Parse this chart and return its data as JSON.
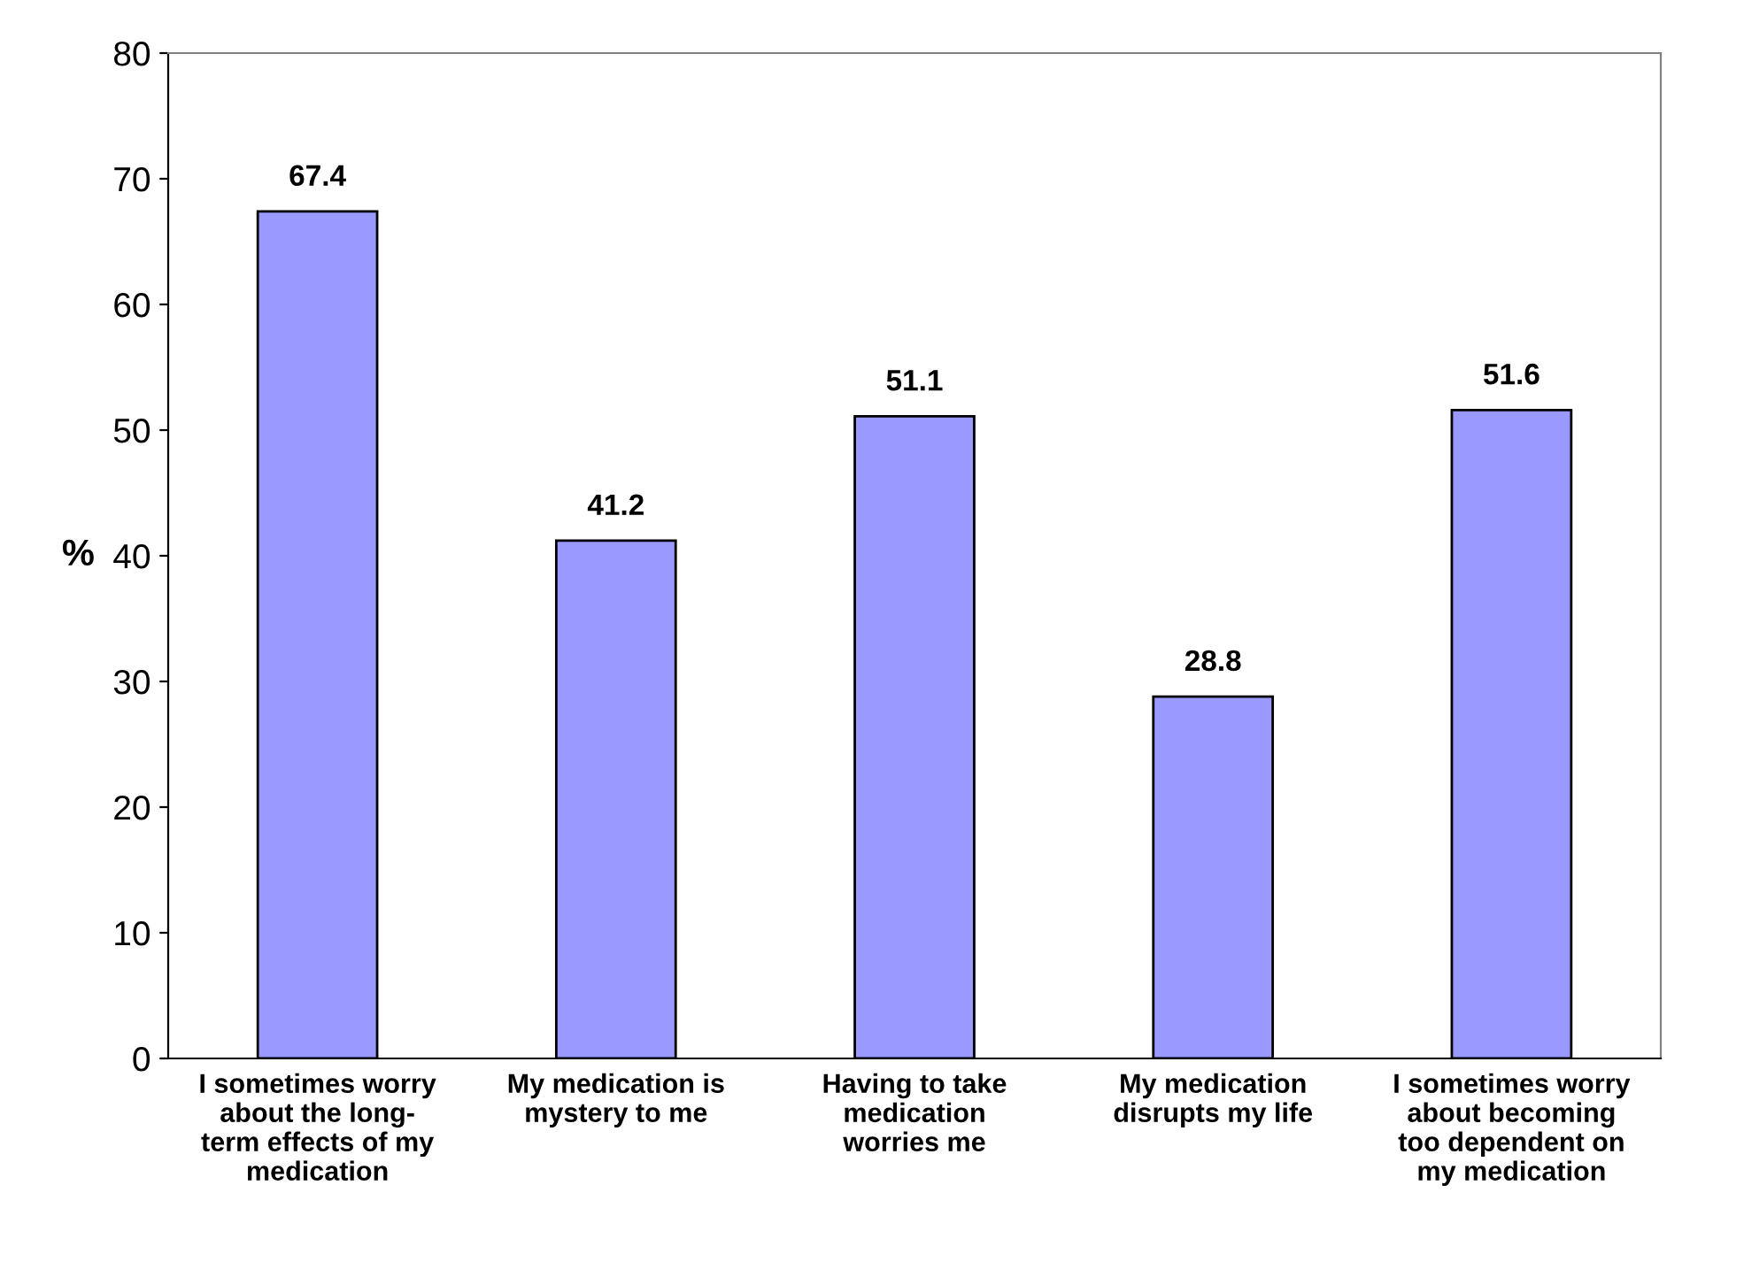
{
  "chart_data": {
    "type": "bar",
    "ylabel": "%",
    "categories": [
      "I sometimes worry\nabout the long-\nterm effects of my\nmedication",
      "My medication is\nmystery to me",
      "Having to take\nmedication\nworries me",
      "My medication\ndisrupts my life",
      "I sometimes worry\nabout becoming\ntoo dependent on\nmy medication"
    ],
    "values": [
      67.4,
      41.2,
      51.1,
      28.8,
      51.6
    ],
    "color": "#9999ff",
    "ylim": [
      0,
      80
    ],
    "yticks": [
      0,
      10,
      20,
      30,
      40,
      50,
      60,
      70,
      80
    ],
    "grid": false,
    "data_labels": true
  }
}
